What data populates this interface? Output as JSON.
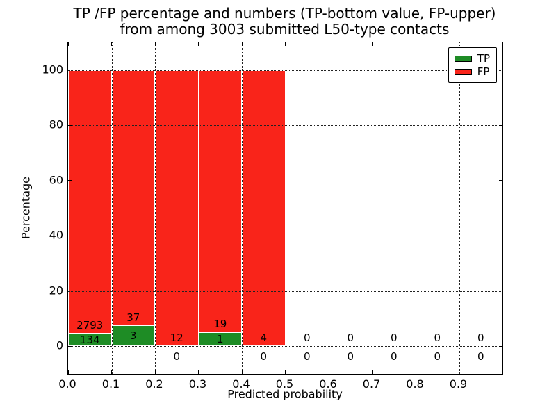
{
  "figure": {
    "title_line1": "TP /FP percentage and numbers (TP-bottom value, FP-upper)",
    "title_line2": "from among 3003 submitted L50-type contacts"
  },
  "chart_data": {
    "type": "bar",
    "stacked": true,
    "title": "TP /FP percentage and numbers (TP-bottom value, FP-upper)\nfrom among 3003 submitted L50-type contacts",
    "xlabel": "Predicted probability",
    "ylabel": "Percentage",
    "xlim": [
      0.0,
      1.0
    ],
    "ylim": [
      -10,
      110
    ],
    "grid": true,
    "grid_style": "dotted",
    "legend_position": "upper right",
    "bin_width": 0.1,
    "bin_starts": [
      0.0,
      0.1,
      0.2,
      0.3,
      0.4,
      0.5,
      0.6,
      0.7,
      0.8,
      0.9
    ],
    "categories": [
      "0.0-0.1",
      "0.1-0.2",
      "0.2-0.3",
      "0.3-0.4",
      "0.4-0.5",
      "0.5-0.6",
      "0.6-0.7",
      "0.7-0.8",
      "0.8-0.9",
      "0.9-1.0"
    ],
    "series": [
      {
        "name": "TP",
        "color": "#1e8c25",
        "counts": [
          134,
          3,
          0,
          1,
          0,
          0,
          0,
          0,
          0,
          0
        ]
      },
      {
        "name": "FP",
        "color": "#f9241a",
        "counts": [
          2793,
          37,
          12,
          19,
          4,
          0,
          0,
          0,
          0,
          0
        ]
      }
    ],
    "x_tick_values": [
      0.0,
      0.1,
      0.2,
      0.3,
      0.4,
      0.5,
      0.6,
      0.7,
      0.8,
      0.9
    ],
    "x_tick_labels": [
      "0.0",
      "0.1",
      "0.2",
      "0.3",
      "0.4",
      "0.5",
      "0.6",
      "0.7",
      "0.8",
      "0.9"
    ],
    "y_tick_values": [
      0,
      20,
      40,
      60,
      80,
      100
    ],
    "y_tick_labels": [
      "0",
      "20",
      "40",
      "60",
      "80",
      "100"
    ]
  },
  "colors": {
    "background": "#ffffff",
    "tp": "#1e8c25",
    "fp": "#f9241a",
    "grid": "#222222",
    "axis": "#000000",
    "text": "#000000"
  }
}
